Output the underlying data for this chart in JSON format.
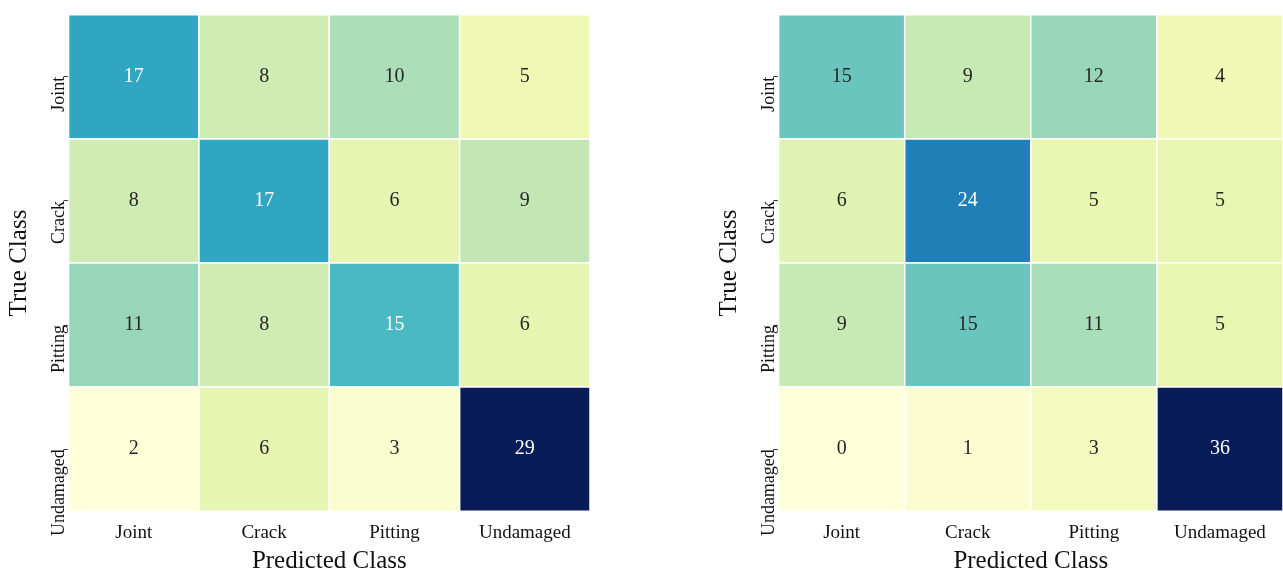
{
  "chart_data": [
    {
      "type": "heatmap",
      "data_labels": true,
      "xlabel": "Predicted Class",
      "ylabel": "True Class",
      "categories": [
        "Joint",
        "Crack",
        "Pitting",
        "Undamaged"
      ],
      "y_categories": [
        "Joint",
        "Crack",
        "Pitting",
        "Undamaged"
      ],
      "cells": [
        [
          17,
          8,
          10,
          5
        ],
        [
          8,
          17,
          6,
          9
        ],
        [
          11,
          8,
          15,
          6
        ],
        [
          2,
          6,
          3,
          29
        ]
      ]
    },
    {
      "type": "heatmap",
      "data_labels": true,
      "xlabel": "Predicted Class",
      "ylabel": "True Class",
      "categories": [
        "Joint",
        "Crack",
        "Pitting",
        "Undamaged"
      ],
      "y_categories": [
        "Joint",
        "Crack",
        "Pitting",
        "Undamaged"
      ],
      "cells": [
        [
          15,
          9,
          12,
          4
        ],
        [
          6,
          24,
          5,
          5
        ],
        [
          9,
          15,
          11,
          5
        ],
        [
          0,
          1,
          3,
          36
        ]
      ]
    }
  ]
}
